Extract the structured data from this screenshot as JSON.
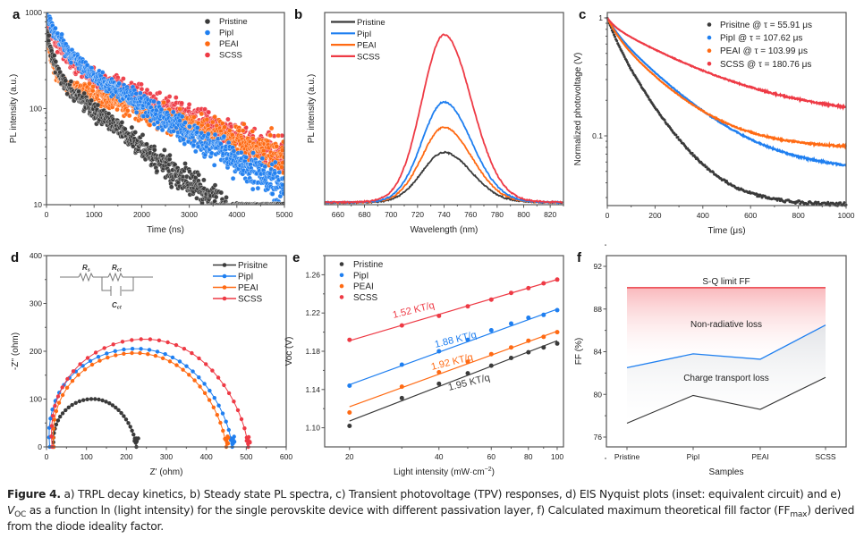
{
  "figure": {
    "caption": {
      "label": "Figure 4.",
      "part1": " a) TRPL decay kinetics, b) Steady state PL spectra, c) Transient photovoltage (TPV) responses, d) EIS Nyquist plots (inset: equivalent circuit) and e) ",
      "voc_v": "V",
      "voc_sub": "OC",
      "part2": " as a function ln (light intensity) for the single perovskite device with different passivation layer, f) Calculated maximum theoretical fill factor (FF",
      "ff_sub": "max",
      "part3": ") derived from the diode ideality factor."
    }
  },
  "colors": {
    "Pristine": "#3a3a3a",
    "PipI": "#1f7ff0",
    "PEAI": "#ff6a13",
    "SCSS": "#ee3a45",
    "SQ": "#e8202a"
  },
  "chart_data": [
    {
      "panel": "a",
      "type": "scatter",
      "title": "",
      "xlabel": "Time (ns)",
      "ylabel": "PL intensity (a.u.)",
      "xlim": [
        0,
        5000
      ],
      "ylim": [
        10,
        1000
      ],
      "yscale": "log",
      "xticks": [
        "0",
        "1000",
        "2000",
        "3000",
        "4000",
        "5000"
      ],
      "yticks": [
        "10",
        "100",
        "1000"
      ],
      "legend": "top-right",
      "series": [
        {
          "name": "Pristine",
          "decay": {
            "a1": 420,
            "t1": 120,
            "a2": 230,
            "t2": 1150
          }
        },
        {
          "name": "PipI",
          "decay": {
            "a1": 520,
            "t1": 250,
            "a2": 420,
            "t2": 1480
          }
        },
        {
          "name": "PEAI",
          "decay": {
            "a1": 430,
            "t1": 90,
            "a2": 200,
            "t2": 2700
          }
        },
        {
          "name": "SCSS",
          "decay": {
            "a1": 430,
            "t1": 260,
            "a2": 330,
            "t2": 2150
          }
        }
      ]
    },
    {
      "panel": "b",
      "type": "line",
      "xlabel": "Wavelength (nm)",
      "ylabel": "PL intensity (a.u.)",
      "xlim": [
        650,
        830
      ],
      "xticks": [
        "660",
        "680",
        "700",
        "720",
        "740",
        "760",
        "780",
        "800",
        "820"
      ],
      "legend": "top-left",
      "peak_nm": 740,
      "series": [
        {
          "name": "Pristine",
          "peak": 0.3
        },
        {
          "name": "PipI",
          "peak": 0.6
        },
        {
          "name": "PEAI",
          "peak": 0.45
        },
        {
          "name": "SCSS",
          "peak": 1.0
        }
      ]
    },
    {
      "panel": "c",
      "type": "scatter",
      "xlabel": "Time (μs)",
      "ylabel": "Normalized photovoltage (V)",
      "xlim": [
        0,
        1000
      ],
      "ylim": [
        0.026,
        1
      ],
      "yscale": "log",
      "xticks": [
        "0",
        "200",
        "400",
        "600",
        "800",
        "1000"
      ],
      "yticks": [
        "0.1",
        "1"
      ],
      "legend": "top-right",
      "series": [
        {
          "name": "Pristine",
          "label": "Prisitne @ τ = 55.91 μs",
          "tau_us": 55.91,
          "end_value": 0.028
        },
        {
          "name": "PipI",
          "label": "PipI @ τ = 107.62 μs",
          "tau_us": 107.62,
          "end_value": 0.055
        },
        {
          "name": "PEAI",
          "label": "PEAI @ τ = 103.99 μs",
          "tau_us": 103.99,
          "end_value": 0.083
        },
        {
          "name": "SCSS",
          "label": "SCSS @ τ = 180.76 μs",
          "tau_us": 180.76,
          "end_value": 0.165
        }
      ]
    },
    {
      "panel": "d",
      "type": "line",
      "xlabel": "Z' (ohm)",
      "ylabel": "-Z'' (ohm)",
      "xlim": [
        0,
        600
      ],
      "ylim": [
        0,
        400
      ],
      "xticks": [
        "0",
        "100",
        "200",
        "300",
        "400",
        "500",
        "600"
      ],
      "yticks": [
        "0",
        "100",
        "200",
        "300",
        "400"
      ],
      "legend": "top-right",
      "inset": {
        "R1": "R",
        "R1_sub": "s",
        "R2": "R",
        "R2_sub": "ct",
        "C": "C",
        "C_sub": "ct"
      },
      "series": [
        {
          "name": "Pristine",
          "label": "Prisitne",
          "Rs": 18,
          "Rend": 225,
          "peak": 100
        },
        {
          "name": "PipI",
          "label": "PipI",
          "Rs": 8,
          "Rend": 465,
          "peak": 205
        },
        {
          "name": "PEAI",
          "label": "PEAI",
          "Rs": 18,
          "Rend": 450,
          "peak": 196
        },
        {
          "name": "SCSS",
          "label": "SCSS",
          "Rs": 14,
          "Rend": 505,
          "peak": 225
        }
      ]
    },
    {
      "panel": "e",
      "type": "scatter",
      "xlabel": "Light intensity (mW·cm",
      "xlabel_sup": "−2",
      "xlabel_end": ")",
      "ylabel": "Voc (V)",
      "xscale": "log",
      "xlim": [
        16.5,
        105
      ],
      "ylim": [
        1.08,
        1.28
      ],
      "xticks": [
        "20",
        "40",
        "60",
        "80",
        "100"
      ],
      "yticks": [
        "1.10",
        "1.14",
        "1.18",
        "1.22",
        "1.26"
      ],
      "legend": "top-left",
      "x": [
        20,
        30,
        40,
        50,
        60,
        70,
        80,
        90,
        100
      ],
      "series": [
        {
          "name": "Pristine",
          "values": [
            1.102,
            1.131,
            1.146,
            1.157,
            1.165,
            1.173,
            1.179,
            1.184,
            1.188
          ],
          "fit": [
            1.107,
            1.191
          ],
          "annotation": "1.95 KT/q"
        },
        {
          "name": "PipI",
          "values": [
            1.144,
            1.166,
            1.18,
            1.192,
            1.202,
            1.209,
            1.215,
            1.218,
            1.223
          ],
          "fit": [
            1.145,
            1.224
          ],
          "annotation": "1.88 KT/q"
        },
        {
          "name": "PEAI",
          "values": [
            1.116,
            1.143,
            1.158,
            1.169,
            1.177,
            1.184,
            1.191,
            1.195,
            1.2
          ],
          "fit": [
            1.122,
            1.201
          ],
          "annotation": "1.92 KT/q"
        },
        {
          "name": "SCSS",
          "values": [
            1.192,
            1.207,
            1.217,
            1.227,
            1.234,
            1.241,
            1.246,
            1.251,
            1.255
          ],
          "fit": [
            1.191,
            1.255
          ],
          "annotation": "1.52 KT/q"
        }
      ]
    },
    {
      "panel": "f",
      "type": "line",
      "xlabel": "Samples",
      "ylabel": "FF (%)",
      "ylim": [
        75,
        93
      ],
      "categories": [
        "Pristine",
        "PipI",
        "PEAI",
        "SCSS"
      ],
      "yticks": [
        "76",
        "80",
        "84",
        "88",
        "92"
      ],
      "series": [
        {
          "name": "S-Q limit FF",
          "values": [
            90.0,
            90.0,
            90.0,
            90.0
          ]
        },
        {
          "name": "FFmax",
          "values": [
            82.5,
            83.8,
            83.3,
            86.5
          ]
        },
        {
          "name": "FF",
          "values": [
            77.3,
            79.9,
            78.6,
            81.6
          ]
        }
      ],
      "annotations": [
        "S-Q limit FF",
        "Non-radiative loss",
        "Charge transport loss"
      ]
    }
  ]
}
